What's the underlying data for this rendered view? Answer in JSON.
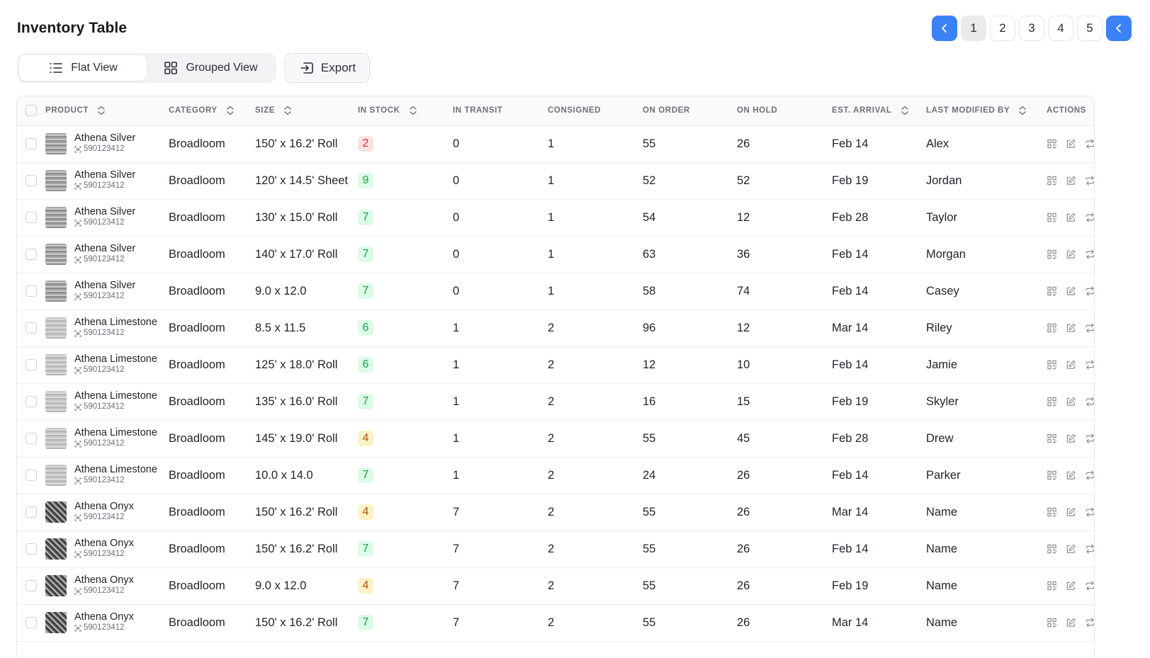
{
  "page": {
    "title": "Inventory Table"
  },
  "pagination": {
    "pages": [
      "1",
      "2",
      "3",
      "4",
      "5"
    ],
    "current": "1"
  },
  "view_toggle": {
    "flat_label": "Flat View",
    "grouped_label": "Grouped View",
    "selected": "Flat View"
  },
  "export": {
    "label": "Export"
  },
  "table": {
    "columns": [
      "PRODUCT",
      "CATEGORY",
      "SIZE",
      "IN STOCK",
      "IN TRANSIT",
      "CONSIGNED",
      "ON ORDER",
      "ON HOLD",
      "EST. ARRIVAL",
      "LAST MODIFIED BY",
      "ACTIONS"
    ],
    "rows": [
      {
        "product": "Athena Silver",
        "sku": "590123412",
        "swatch": "silver",
        "category": "Broadloom",
        "size": "150' x 16.2' Roll",
        "in_stock": "2",
        "stock_status": "red",
        "in_transit": "0",
        "consigned": "1",
        "on_order": "55",
        "on_hold": "26",
        "est_arrival": "Feb 14",
        "modified_by": "Alex"
      },
      {
        "product": "Athena Silver",
        "sku": "590123412",
        "swatch": "silver",
        "category": "Broadloom",
        "size": "120' x 14.5' Sheet",
        "in_stock": "9",
        "stock_status": "green",
        "in_transit": "0",
        "consigned": "1",
        "on_order": "52",
        "on_hold": "52",
        "est_arrival": "Feb 19",
        "modified_by": "Jordan"
      },
      {
        "product": "Athena Silver",
        "sku": "590123412",
        "swatch": "silver",
        "category": "Broadloom",
        "size": "130' x 15.0' Roll",
        "in_stock": "7",
        "stock_status": "green",
        "in_transit": "0",
        "consigned": "1",
        "on_order": "54",
        "on_hold": "12",
        "est_arrival": "Feb 28",
        "modified_by": "Taylor"
      },
      {
        "product": "Athena Silver",
        "sku": "590123412",
        "swatch": "silver",
        "category": "Broadloom",
        "size": "140' x 17.0' Roll",
        "in_stock": "7",
        "stock_status": "green",
        "in_transit": "0",
        "consigned": "1",
        "on_order": "63",
        "on_hold": "36",
        "est_arrival": "Feb 14",
        "modified_by": "Morgan"
      },
      {
        "product": "Athena Silver",
        "sku": "590123412",
        "swatch": "silver",
        "category": "Broadloom",
        "size": "9.0 x 12.0",
        "in_stock": "7",
        "stock_status": "green",
        "in_transit": "0",
        "consigned": "1",
        "on_order": "58",
        "on_hold": "74",
        "est_arrival": "Feb 14",
        "modified_by": "Casey"
      },
      {
        "product": "Athena Limestone",
        "sku": "590123412",
        "swatch": "limestone",
        "category": "Broadloom",
        "size": "8.5 x 11.5",
        "in_stock": "6",
        "stock_status": "green",
        "in_transit": "1",
        "consigned": "2",
        "on_order": "96",
        "on_hold": "12",
        "est_arrival": "Mar 14",
        "modified_by": "Riley"
      },
      {
        "product": "Athena Limestone",
        "sku": "590123412",
        "swatch": "limestone",
        "category": "Broadloom",
        "size": "125' x 18.0' Roll",
        "in_stock": "6",
        "stock_status": "green",
        "in_transit": "1",
        "consigned": "2",
        "on_order": "12",
        "on_hold": "10",
        "est_arrival": "Feb 14",
        "modified_by": "Jamie"
      },
      {
        "product": "Athena Limestone",
        "sku": "590123412",
        "swatch": "limestone",
        "category": "Broadloom",
        "size": "135' x 16.0' Roll",
        "in_stock": "7",
        "stock_status": "green",
        "in_transit": "1",
        "consigned": "2",
        "on_order": "16",
        "on_hold": "15",
        "est_arrival": "Feb 19",
        "modified_by": "Skyler"
      },
      {
        "product": "Athena Limestone",
        "sku": "590123412",
        "swatch": "limestone",
        "category": "Broadloom",
        "size": "145' x 19.0' Roll",
        "in_stock": "4",
        "stock_status": "yellow",
        "in_transit": "1",
        "consigned": "2",
        "on_order": "55",
        "on_hold": "45",
        "est_arrival": "Feb 28",
        "modified_by": "Drew"
      },
      {
        "product": "Athena Limestone",
        "sku": "590123412",
        "swatch": "limestone",
        "category": "Broadloom",
        "size": "10.0 x 14.0",
        "in_stock": "7",
        "stock_status": "green",
        "in_transit": "1",
        "consigned": "2",
        "on_order": "24",
        "on_hold": "26",
        "est_arrival": "Feb 14",
        "modified_by": "Parker"
      },
      {
        "product": "Athena Onyx",
        "sku": "590123412",
        "swatch": "onyx",
        "category": "Broadloom",
        "size": "150' x 16.2' Roll",
        "in_stock": "4",
        "stock_status": "yellow",
        "in_transit": "7",
        "consigned": "2",
        "on_order": "55",
        "on_hold": "26",
        "est_arrival": "Mar 14",
        "modified_by": "Name"
      },
      {
        "product": "Athena Onyx",
        "sku": "590123412",
        "swatch": "onyx",
        "category": "Broadloom",
        "size": "150' x 16.2' Roll",
        "in_stock": "7",
        "stock_status": "green",
        "in_transit": "7",
        "consigned": "2",
        "on_order": "55",
        "on_hold": "26",
        "est_arrival": "Feb 14",
        "modified_by": "Name"
      },
      {
        "product": "Athena Onyx",
        "sku": "590123412",
        "swatch": "onyx",
        "category": "Broadloom",
        "size": "9.0 x 12.0",
        "in_stock": "4",
        "stock_status": "yellow",
        "in_transit": "7",
        "consigned": "2",
        "on_order": "55",
        "on_hold": "26",
        "est_arrival": "Feb 19",
        "modified_by": "Name"
      },
      {
        "product": "Athena Onyx",
        "sku": "590123412",
        "swatch": "onyx",
        "category": "Broadloom",
        "size": "150' x 16.2' Roll",
        "in_stock": "7",
        "stock_status": "green",
        "in_transit": "7",
        "consigned": "2",
        "on_order": "55",
        "on_hold": "26",
        "est_arrival": "Mar 14",
        "modified_by": "Name"
      }
    ]
  },
  "icons": {
    "prev": "chevron-left-icon",
    "next": "chevron-left-icon",
    "flat": "list-icon",
    "grouped": "grid-icon",
    "export": "export-icon",
    "sort": "sort-icon",
    "sku": "barcode-scan-icon",
    "actions": [
      "qr-code-icon",
      "edit-icon",
      "transfer-icon"
    ]
  },
  "colors": {
    "accent": "#3b82f6",
    "stock_green": "#16a34a",
    "stock_red": "#dc2626",
    "stock_yellow": "#b45309"
  }
}
